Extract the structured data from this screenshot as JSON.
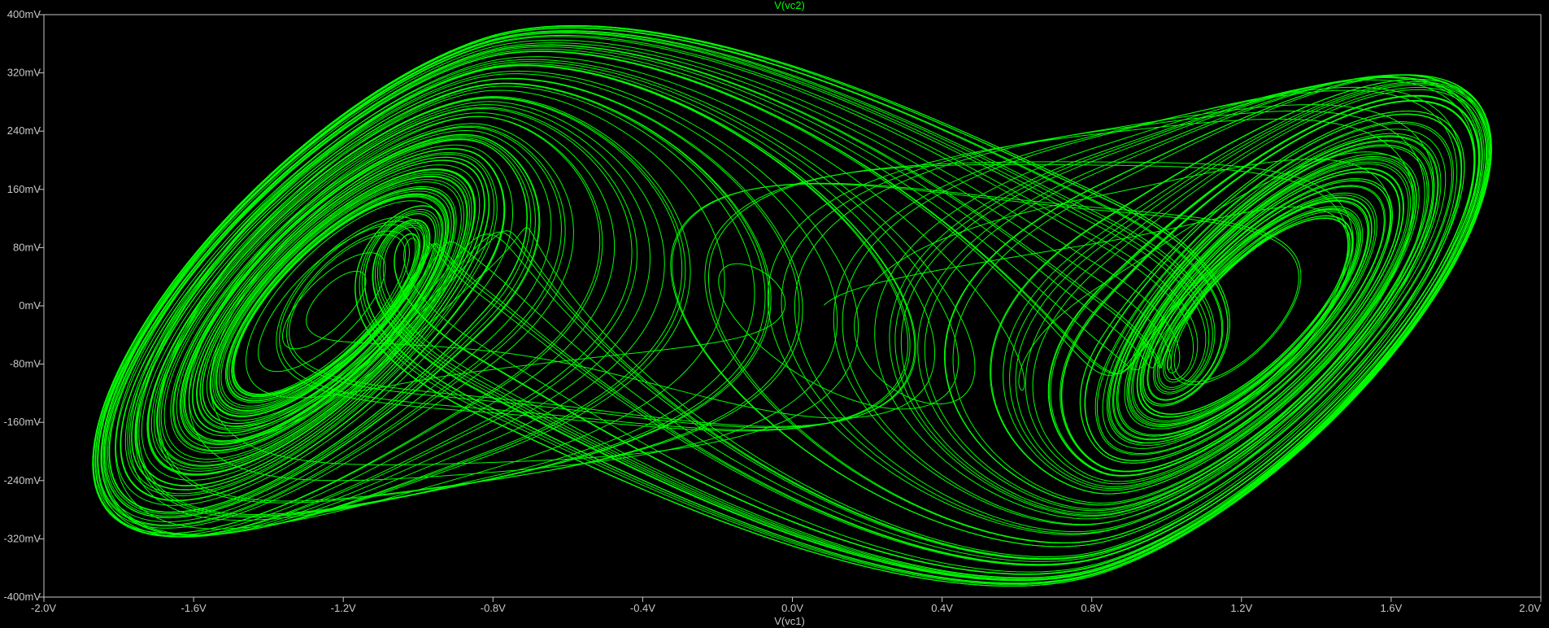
{
  "chart_data": {
    "type": "line",
    "title": "V(vc2)",
    "xlabel": "V(vc1)",
    "ylabel": "",
    "xlim": [
      -2.0,
      2.0
    ],
    "ylim": [
      -400,
      400
    ],
    "x_ticks": [
      "-2.0V",
      "-1.6V",
      "-1.2V",
      "-0.8V",
      "-0.4V",
      "0.0V",
      "0.4V",
      "0.8V",
      "1.2V",
      "1.6V",
      "2.0V"
    ],
    "y_ticks": [
      "400mV",
      "320mV",
      "240mV",
      "160mV",
      "80mV",
      "0mV",
      "-80mV",
      "-160mV",
      "-240mV",
      "-320mV",
      "-400mV"
    ],
    "grid": false,
    "colors": {
      "trace": "#00ff00",
      "background": "#000000",
      "axis": "#c8c8c8"
    },
    "series": [
      {
        "name": "V(vc2)",
        "description_points": "double-scroll attractor trajectory (Chua circuit) spanning x from about -1.87V to 1.87V and y from about -380mV to 385mV",
        "attractor_centers": [
          [
            -1.3,
            -20
          ],
          [
            1.3,
            20
          ]
        ]
      }
    ]
  }
}
